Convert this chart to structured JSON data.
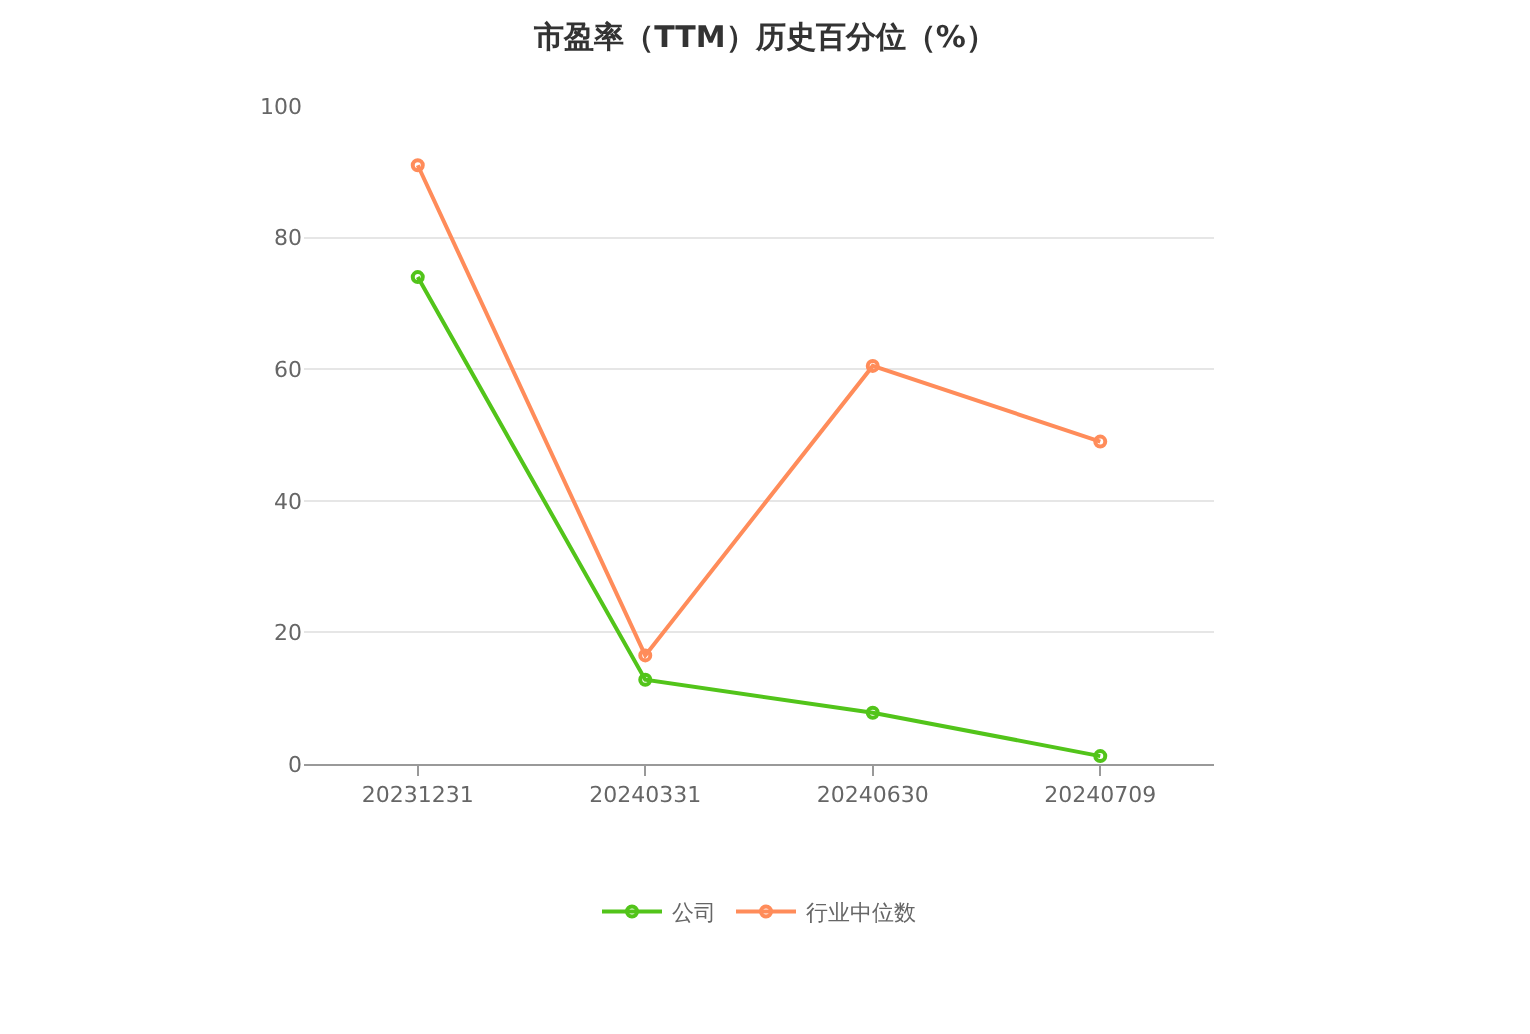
{
  "chart_data": {
    "type": "line",
    "title": "市盈率（TTM）历史百分位（%）",
    "categories": [
      "20231231",
      "20240331",
      "20240630",
      "20240709"
    ],
    "series": [
      {
        "name": "公司",
        "color": "#52c41a",
        "values": [
          74,
          12.8,
          7.8,
          1.2
        ]
      },
      {
        "name": "行业中位数",
        "color": "#ff8c5a",
        "values": [
          91,
          16.5,
          60.5,
          49
        ]
      }
    ],
    "ylim": [
      0,
      100
    ],
    "yticks": [
      0,
      20,
      40,
      60,
      80,
      100
    ],
    "grid": "y",
    "legend": "bottom",
    "marker": "circle",
    "line_style": "solid"
  }
}
